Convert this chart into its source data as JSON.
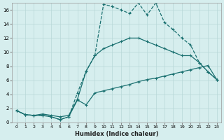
{
  "title": "",
  "xlabel": "Humidex (Indice chaleur)",
  "bg_color": "#d6eeee",
  "grid_color": "#b8d8d8",
  "line_color": "#1a7070",
  "xlim": [
    -0.5,
    23.5
  ],
  "ylim": [
    0,
    17
  ],
  "xticks": [
    0,
    1,
    2,
    3,
    4,
    5,
    6,
    7,
    8,
    9,
    10,
    11,
    12,
    13,
    14,
    15,
    16,
    17,
    18,
    19,
    20,
    21,
    22,
    23
  ],
  "yticks": [
    0,
    2,
    4,
    6,
    8,
    10,
    12,
    14,
    16
  ],
  "line_dotted_x": [
    0,
    1,
    2,
    3,
    4,
    5,
    6,
    7,
    8,
    9,
    10,
    11,
    12,
    13,
    14,
    15,
    16,
    17,
    18,
    19,
    20,
    21,
    22,
    23
  ],
  "line_dotted_y": [
    1.7,
    1.1,
    1.0,
    1.0,
    0.8,
    0.4,
    0.8,
    4.2,
    7.3,
    9.5,
    16.8,
    16.5,
    16.0,
    15.5,
    17.0,
    15.3,
    17.0,
    14.2,
    13.2,
    12.0,
    11.0,
    8.5,
    7.2,
    6.1
  ],
  "line_solid1_x": [
    0,
    1,
    2,
    3,
    4,
    5,
    6,
    7,
    8,
    9,
    10,
    11,
    12,
    13,
    14,
    15,
    16,
    17,
    18,
    19,
    20,
    21,
    22,
    23
  ],
  "line_solid1_y": [
    1.7,
    1.1,
    1.0,
    1.0,
    0.8,
    0.4,
    0.8,
    3.2,
    2.5,
    4.2,
    4.5,
    4.8,
    5.1,
    5.4,
    5.8,
    6.1,
    6.3,
    6.6,
    6.9,
    7.2,
    7.5,
    7.8,
    8.1,
    6.1
  ],
  "line_solid2_x": [
    0,
    1,
    2,
    3,
    4,
    5,
    6,
    7,
    8,
    9,
    10,
    11,
    12,
    13,
    14,
    15,
    16,
    17,
    18,
    19,
    20,
    21,
    22,
    23
  ],
  "line_solid2_y": [
    1.7,
    1.1,
    1.0,
    1.2,
    1.0,
    0.8,
    1.0,
    3.3,
    7.3,
    9.5,
    10.5,
    11.0,
    11.5,
    12.0,
    12.0,
    11.5,
    11.0,
    10.5,
    10.0,
    9.5,
    9.5,
    8.5,
    7.2,
    6.1
  ]
}
